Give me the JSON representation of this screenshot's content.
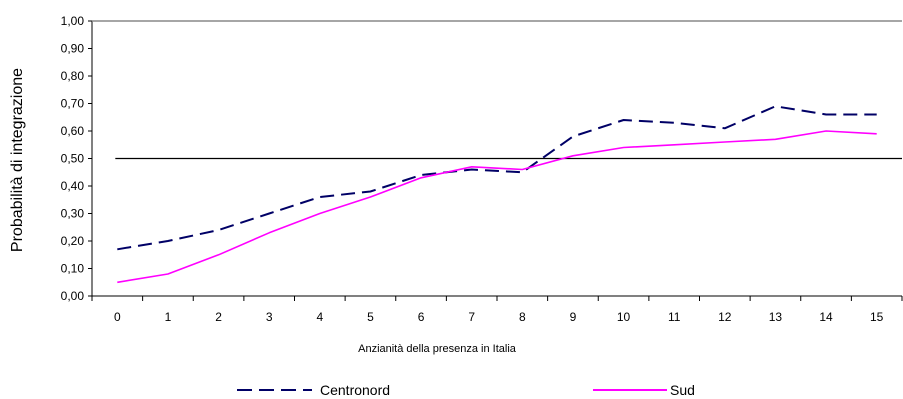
{
  "chart_data": {
    "type": "line",
    "xlabel": "Anzianità della presenza in Italia",
    "ylabel": "Probabilità di integrazione",
    "categories": [
      "0",
      "1",
      "2",
      "3",
      "4",
      "5",
      "6",
      "7",
      "8",
      "9",
      "10",
      "11",
      "12",
      "13",
      "14",
      "15"
    ],
    "ylim": [
      0,
      1.0
    ],
    "yticks": [
      "0,00",
      "0,10",
      "0,20",
      "0,30",
      "0,40",
      "0,50",
      "0,60",
      "0,70",
      "0,80",
      "0,90",
      "1,00"
    ],
    "reference_line": 0.5,
    "grid": false,
    "legend_position": "bottom",
    "series": [
      {
        "name": "Centronord",
        "color": "#000066",
        "style": "dashed",
        "values": [
          0.17,
          0.2,
          0.24,
          0.3,
          0.36,
          0.38,
          0.44,
          0.46,
          0.45,
          0.58,
          0.64,
          0.63,
          0.61,
          0.69,
          0.66,
          0.66
        ]
      },
      {
        "name": "Sud",
        "color": "#ff00ff",
        "style": "solid",
        "values": [
          0.05,
          0.08,
          0.15,
          0.23,
          0.3,
          0.36,
          0.43,
          0.47,
          0.46,
          0.51,
          0.54,
          0.55,
          0.56,
          0.57,
          0.6,
          0.59
        ]
      }
    ]
  }
}
